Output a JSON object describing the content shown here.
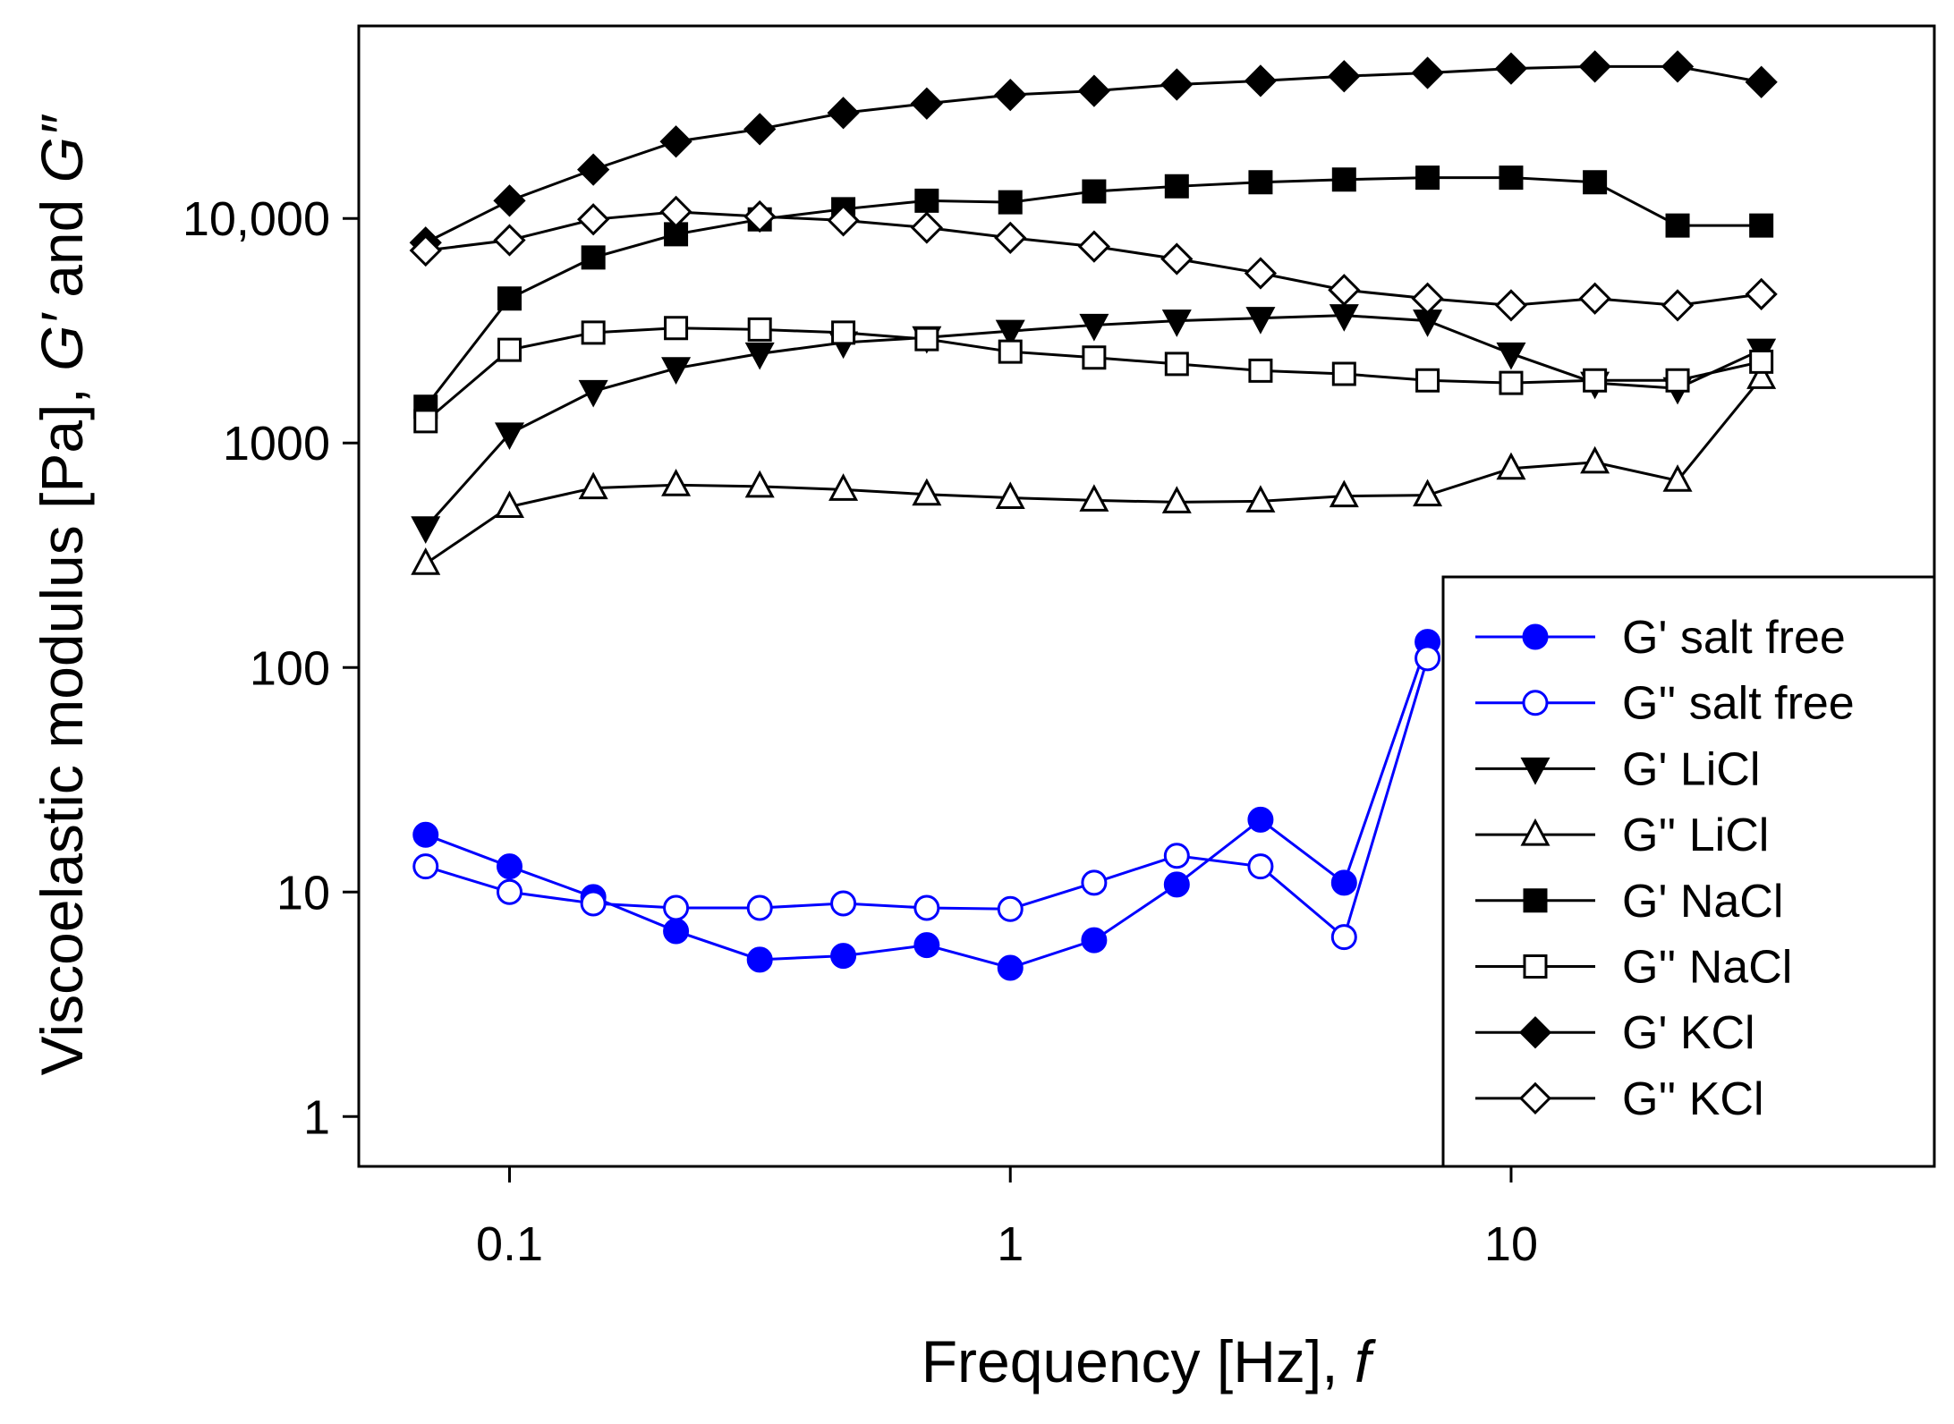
{
  "chart_data": {
    "type": "line",
    "title": "",
    "xlabel": "Frequency [Hz], ",
    "xlabel_italic": "f",
    "ylabel_parts": [
      "Viscoelastic modulus [Pa], ",
      "G′",
      " and ",
      "G″"
    ],
    "xscale": "log",
    "yscale": "log",
    "xlim": [
      0.05,
      70
    ],
    "ylim": [
      0.6,
      72000
    ],
    "xticks": [
      0.1,
      1,
      10
    ],
    "xtick_labels": [
      "0.1",
      "1",
      "10"
    ],
    "yticks": [
      1,
      10,
      100,
      1000,
      10000
    ],
    "ytick_labels": [
      "1",
      "10",
      "100",
      "1000",
      "10,000"
    ],
    "legend_position": "bottom-right",
    "x": [
      0.068,
      0.1,
      0.147,
      0.215,
      0.316,
      0.464,
      0.681,
      1.0,
      1.47,
      2.15,
      3.16,
      4.64,
      6.81,
      10.0,
      14.7,
      21.5,
      31.6
    ],
    "series": [
      {
        "name": "G' salt free",
        "color": "#0000ff",
        "marker": "circle",
        "filled": true,
        "values": [
          18,
          13,
          9.5,
          6.7,
          5,
          5.2,
          5.8,
          4.6,
          6.1,
          10.8,
          21,
          11,
          130,
          null,
          null,
          null,
          null
        ]
      },
      {
        "name": "G'' salt free",
        "color": "#0000ff",
        "marker": "circle",
        "filled": false,
        "values": [
          13,
          10,
          8.9,
          8.5,
          8.5,
          8.9,
          8.5,
          8.4,
          11,
          14.5,
          13,
          6.3,
          110,
          null,
          null,
          null,
          null
        ]
      },
      {
        "name": "G'  LiCl",
        "color": "#000000",
        "marker": "triangle-down",
        "filled": true,
        "values": [
          420,
          1100,
          1700,
          2150,
          2500,
          2800,
          2950,
          3150,
          3350,
          3500,
          3600,
          3700,
          3500,
          2500,
          1850,
          1750,
          2600
        ]
      },
      {
        "name": "G'' LiCl",
        "color": "#000000",
        "marker": "triangle-up",
        "filled": false,
        "values": [
          290,
          520,
          630,
          650,
          640,
          620,
          590,
          570,
          555,
          545,
          550,
          580,
          585,
          770,
          820,
          680,
          1950
        ]
      },
      {
        "name": "G'  NaCl",
        "color": "#000000",
        "marker": "square",
        "filled": true,
        "values": [
          1450,
          4400,
          6700,
          8500,
          9900,
          11000,
          12000,
          11800,
          13200,
          13900,
          14500,
          14900,
          15200,
          15200,
          14500,
          9300,
          9300
        ]
      },
      {
        "name": "G'' NaCl",
        "color": "#000000",
        "marker": "square",
        "filled": false,
        "values": [
          1250,
          2600,
          3100,
          3250,
          3200,
          3100,
          2900,
          2550,
          2400,
          2250,
          2100,
          2030,
          1900,
          1850,
          1900,
          1900,
          2300
        ]
      },
      {
        "name": "G'  KCl",
        "color": "#000000",
        "marker": "diamond",
        "filled": true,
        "values": [
          7800,
          12000,
          16500,
          22000,
          25000,
          29500,
          32500,
          35500,
          37000,
          39500,
          41000,
          43000,
          44500,
          46500,
          47500,
          47500,
          40500
        ]
      },
      {
        "name": "G'' KCl",
        "color": "#000000",
        "marker": "diamond",
        "filled": false,
        "values": [
          7200,
          8000,
          9900,
          10700,
          10200,
          9800,
          9100,
          8200,
          7500,
          6600,
          5700,
          4800,
          4400,
          4100,
          4400,
          4100,
          4600
        ]
      }
    ]
  }
}
